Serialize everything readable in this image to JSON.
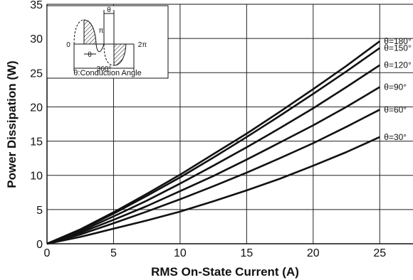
{
  "chart_data": {
    "type": "line",
    "title": "",
    "xlabel": "RMS On-State Current (A)",
    "ylabel": "Power Dissipation (W)",
    "xlim": [
      0,
      27.5
    ],
    "ylim": [
      0,
      35
    ],
    "xticks": [
      0,
      5,
      10,
      15,
      20,
      25
    ],
    "yticks": [
      0,
      5,
      10,
      15,
      20,
      25,
      30,
      35
    ],
    "grid": true,
    "x": [
      0,
      2.5,
      5,
      7.5,
      10,
      12.5,
      15,
      17.5,
      20,
      22.5,
      25
    ],
    "series": [
      {
        "name": "θ=180°",
        "values": [
          0,
          2.1,
          4.6,
          7.3,
          10.1,
          13.1,
          16.1,
          19.3,
          22.6,
          26.0,
          29.6
        ]
      },
      {
        "name": "θ=150°",
        "values": [
          0,
          2.0,
          4.4,
          7.0,
          9.7,
          12.6,
          15.6,
          18.7,
          21.9,
          25.2,
          28.6
        ]
      },
      {
        "name": "θ=120°",
        "values": [
          0,
          1.8,
          4.0,
          6.3,
          8.8,
          11.4,
          14.1,
          16.9,
          19.8,
          22.9,
          26.1
        ]
      },
      {
        "name": "θ=90°",
        "values": [
          0,
          1.6,
          3.5,
          5.5,
          7.7,
          9.9,
          12.3,
          14.8,
          17.3,
          20.0,
          22.9
        ]
      },
      {
        "name": "θ=60°",
        "values": [
          0,
          1.35,
          3.0,
          4.7,
          6.5,
          8.4,
          10.4,
          12.5,
          14.7,
          17.1,
          19.6
        ]
      },
      {
        "name": "θ=30°",
        "values": [
          0,
          1.0,
          2.2,
          3.4,
          4.7,
          6.2,
          7.8,
          9.5,
          11.4,
          13.4,
          15.6
        ]
      }
    ],
    "inset": {
      "zero": "0",
      "pi": "π",
      "two_pi": "2π",
      "theta_top": "θ",
      "theta_mid": "θ",
      "degrees": "360°",
      "caption": "θ:Conduction Angle"
    }
  }
}
